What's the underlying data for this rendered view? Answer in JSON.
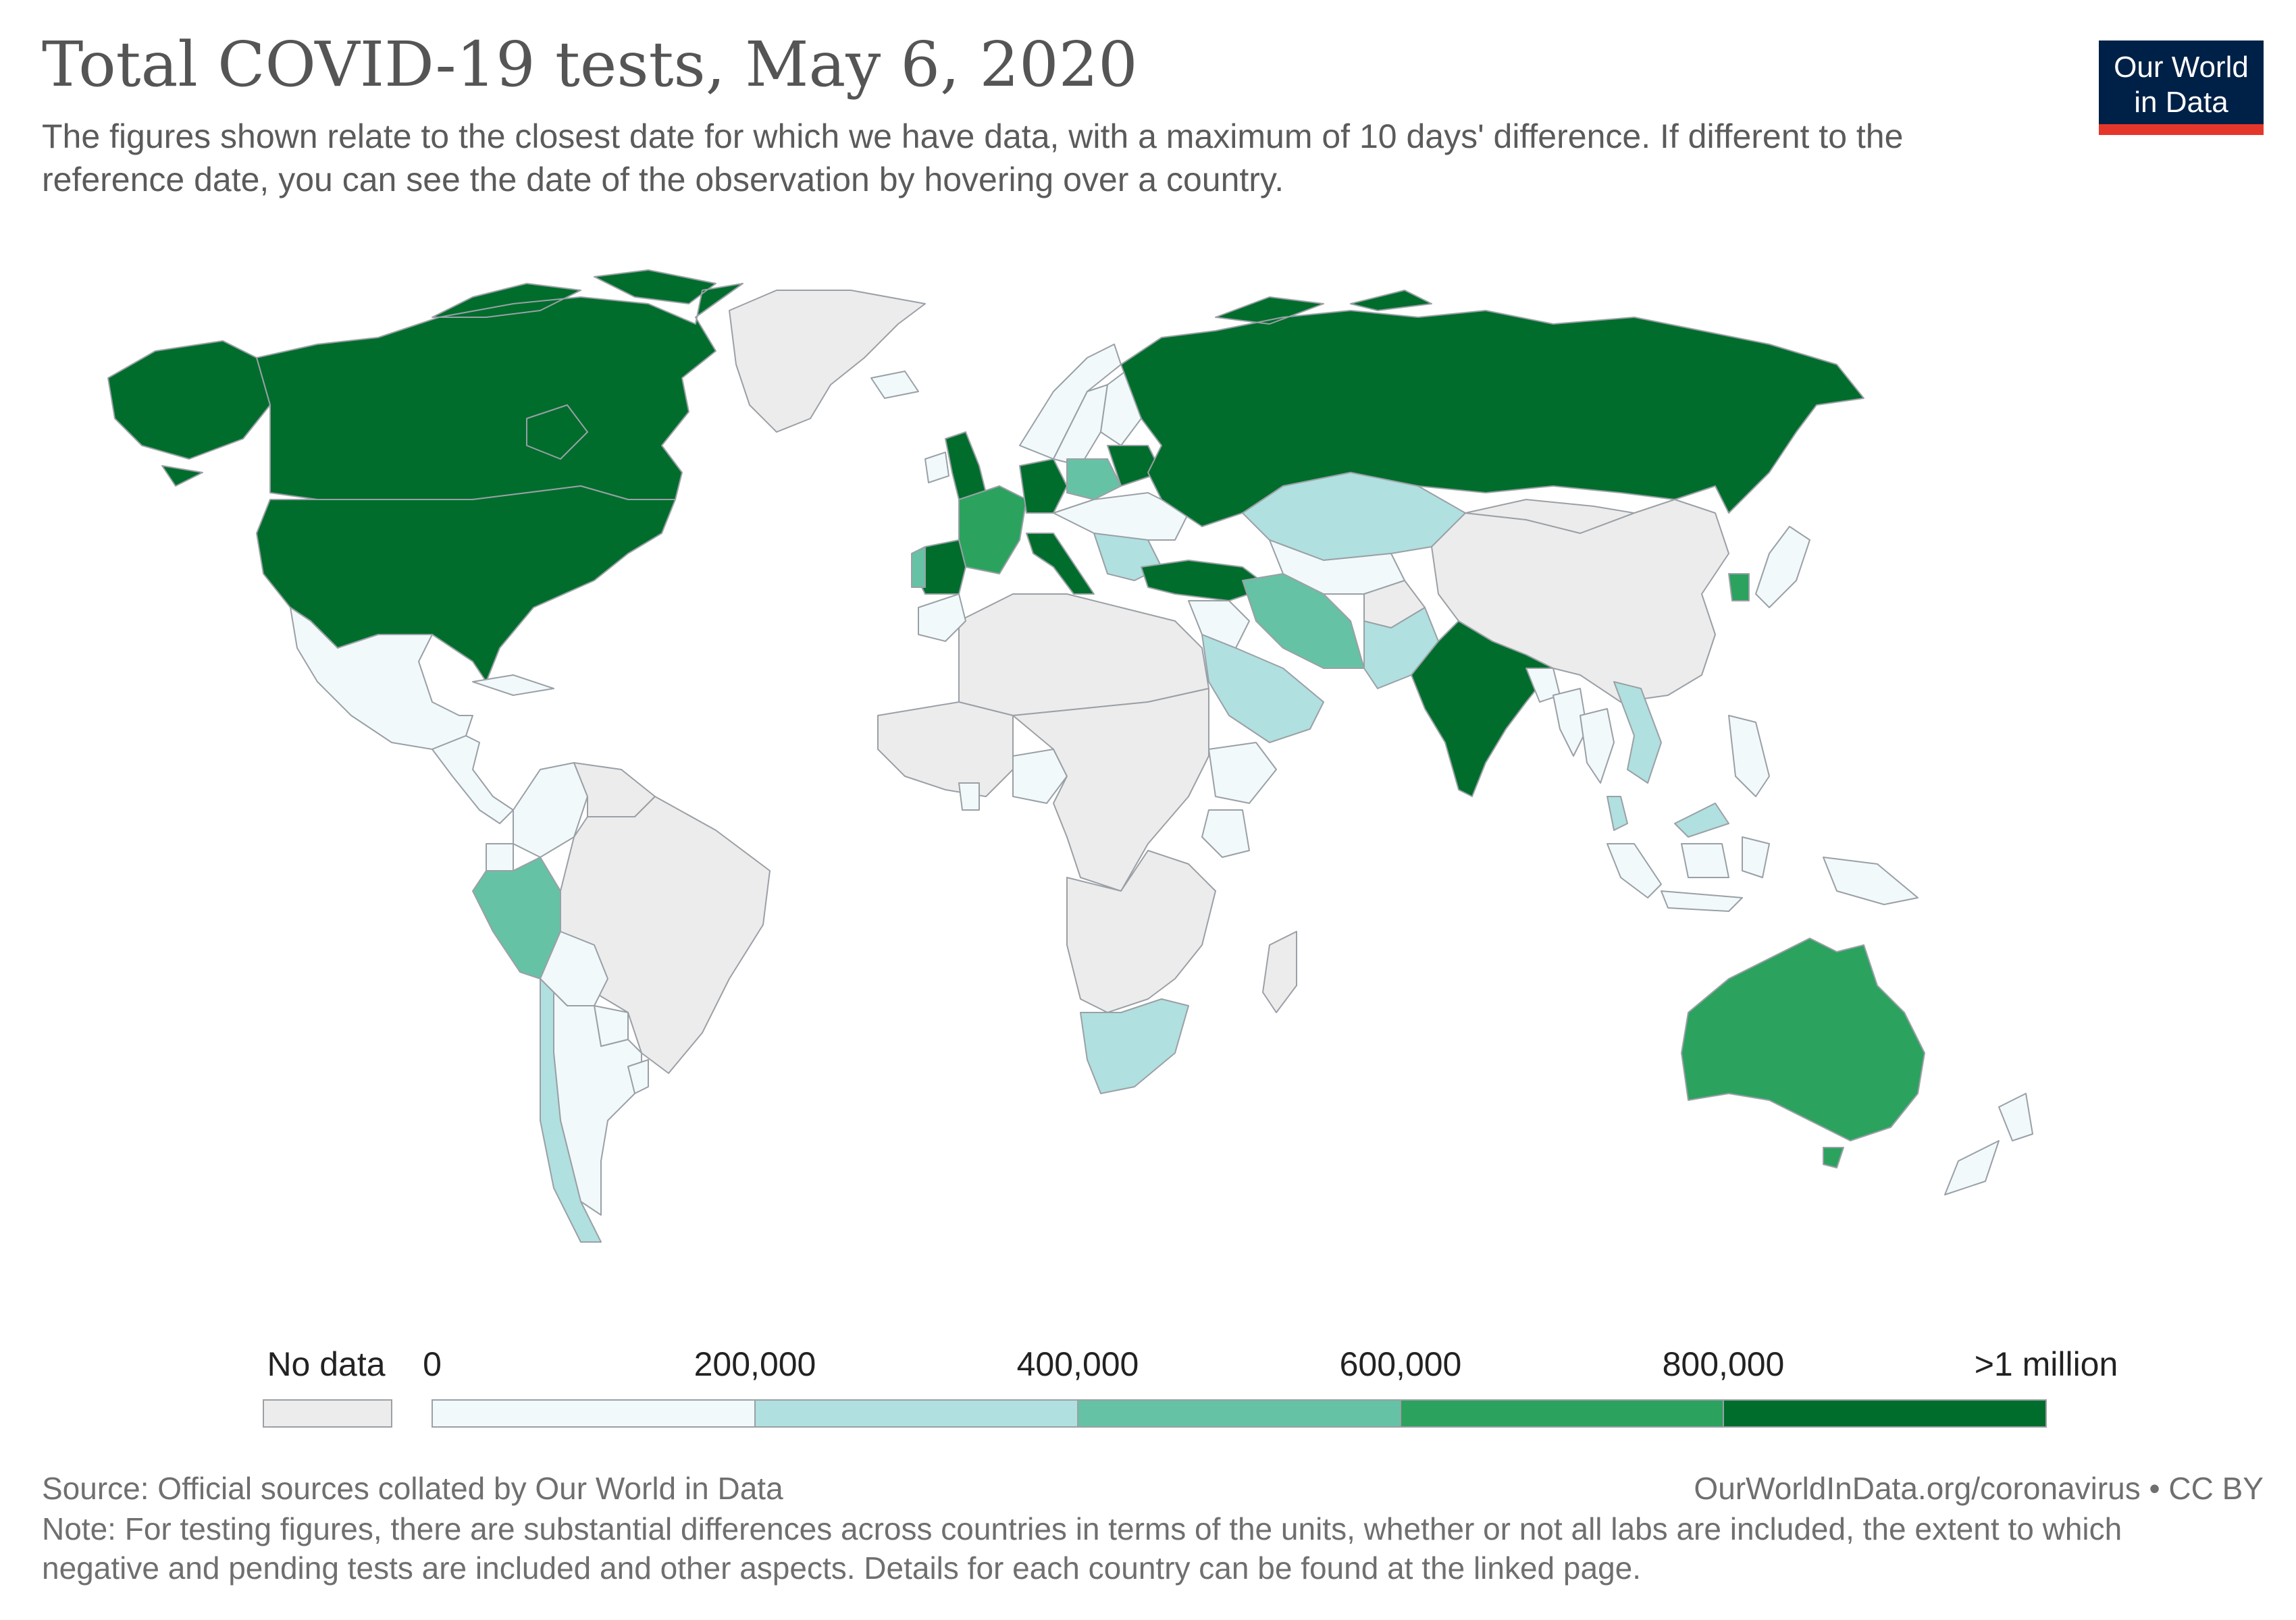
{
  "header": {
    "title": "Total COVID-19 tests, May 6, 2020",
    "subtitle": "The figures shown relate to the closest date for which we have data, with a maximum of 10 days' difference. If different to the reference date, you can see the date of the observation by hovering over a country."
  },
  "logo": {
    "line1": "Our World",
    "line2": "in Data",
    "bg": "#002147",
    "accent": "#e5362b"
  },
  "legend": {
    "no_data_label": "No data",
    "no_data_color": "#ececec",
    "bins": [
      {
        "label": "0",
        "color": "#f1f9fb"
      },
      {
        "label": "200,000",
        "color": "#b0e0df"
      },
      {
        "label": "400,000",
        "color": "#66c2a4"
      },
      {
        "label": "600,000",
        "color": "#2ca25f"
      },
      {
        "label": "800,000",
        "color": "#006d2c"
      }
    ],
    "max_label": ">1 million"
  },
  "regions": [
    {
      "name": "Canada",
      "bin": 4
    },
    {
      "name": "United States",
      "bin": 4
    },
    {
      "name": "Alaska",
      "bin": 4
    },
    {
      "name": "Greenland",
      "bin": -1
    },
    {
      "name": "Mexico",
      "bin": 0
    },
    {
      "name": "Central America",
      "bin": 0
    },
    {
      "name": "Cuba",
      "bin": 0
    },
    {
      "name": "Colombia",
      "bin": 0
    },
    {
      "name": "Venezuela",
      "bin": -1
    },
    {
      "name": "Brazil",
      "bin": -1
    },
    {
      "name": "Peru",
      "bin": 2
    },
    {
      "name": "Ecuador",
      "bin": 0
    },
    {
      "name": "Bolivia",
      "bin": 0
    },
    {
      "name": "Paraguay",
      "bin": 0
    },
    {
      "name": "Argentina",
      "bin": 0
    },
    {
      "name": "Chile",
      "bin": 1
    },
    {
      "name": "Uruguay",
      "bin": 0
    },
    {
      "name": "United Kingdom",
      "bin": 4
    },
    {
      "name": "Ireland",
      "bin": 0
    },
    {
      "name": "Iceland",
      "bin": 0
    },
    {
      "name": "Norway",
      "bin": 0
    },
    {
      "name": "Sweden",
      "bin": 0
    },
    {
      "name": "Finland",
      "bin": 0
    },
    {
      "name": "France",
      "bin": 3
    },
    {
      "name": "Spain",
      "bin": 4
    },
    {
      "name": "Portugal",
      "bin": 2
    },
    {
      "name": "Germany",
      "bin": 4
    },
    {
      "name": "Italy",
      "bin": 4
    },
    {
      "name": "Poland",
      "bin": 2
    },
    {
      "name": "Eastern Europe",
      "bin": 0
    },
    {
      "name": "Balkans",
      "bin": 1
    },
    {
      "name": "Belarus",
      "bin": 4
    },
    {
      "name": "Russia",
      "bin": 4
    },
    {
      "name": "Turkey",
      "bin": 4
    },
    {
      "name": "Kazakhstan",
      "bin": 1
    },
    {
      "name": "Central Asia",
      "bin": 0
    },
    {
      "name": "Iran",
      "bin": 2
    },
    {
      "name": "Saudi Arabia",
      "bin": 1
    },
    {
      "name": "Middle East",
      "bin": 0
    },
    {
      "name": "Pakistan",
      "bin": 1
    },
    {
      "name": "Afghanistan",
      "bin": -1
    },
    {
      "name": "India",
      "bin": 4
    },
    {
      "name": "Bangladesh",
      "bin": 0
    },
    {
      "name": "China",
      "bin": -1
    },
    {
      "name": "Mongolia",
      "bin": -1
    },
    {
      "name": "South Korea",
      "bin": 3
    },
    {
      "name": "Japan",
      "bin": 0
    },
    {
      "name": "Myanmar",
      "bin": 0
    },
    {
      "name": "Thailand",
      "bin": 0
    },
    {
      "name": "Vietnam",
      "bin": 1
    },
    {
      "name": "Malaysia",
      "bin": 1
    },
    {
      "name": "Philippines",
      "bin": 0
    },
    {
      "name": "Indonesia",
      "bin": 0
    },
    {
      "name": "Papua New Guinea",
      "bin": 0
    },
    {
      "name": "Australia",
      "bin": 3
    },
    {
      "name": "Tasmania",
      "bin": 3
    },
    {
      "name": "New Zealand",
      "bin": 0
    },
    {
      "name": "North Africa",
      "bin": -1
    },
    {
      "name": "Morocco",
      "bin": 0
    },
    {
      "name": "West Africa",
      "bin": -1
    },
    {
      "name": "Nigeria",
      "bin": 0
    },
    {
      "name": "Ghana",
      "bin": 0
    },
    {
      "name": "Central Africa",
      "bin": -1
    },
    {
      "name": "Ethiopia",
      "bin": 0
    },
    {
      "name": "Kenya",
      "bin": 0
    },
    {
      "name": "Southern Africa",
      "bin": -1
    },
    {
      "name": "South Africa",
      "bin": 1
    },
    {
      "name": "Madagascar",
      "bin": -1
    }
  ],
  "footer": {
    "source": "Source: Official sources collated by Our World in Data",
    "url": "OurWorldInData.org/coronavirus • CC BY",
    "note": "Note: For testing figures, there are substantial differences across countries in terms of the units, whether or not all labs are included, the extent to which negative and pending tests are included and other aspects. Details for each country can be found at the linked page."
  }
}
